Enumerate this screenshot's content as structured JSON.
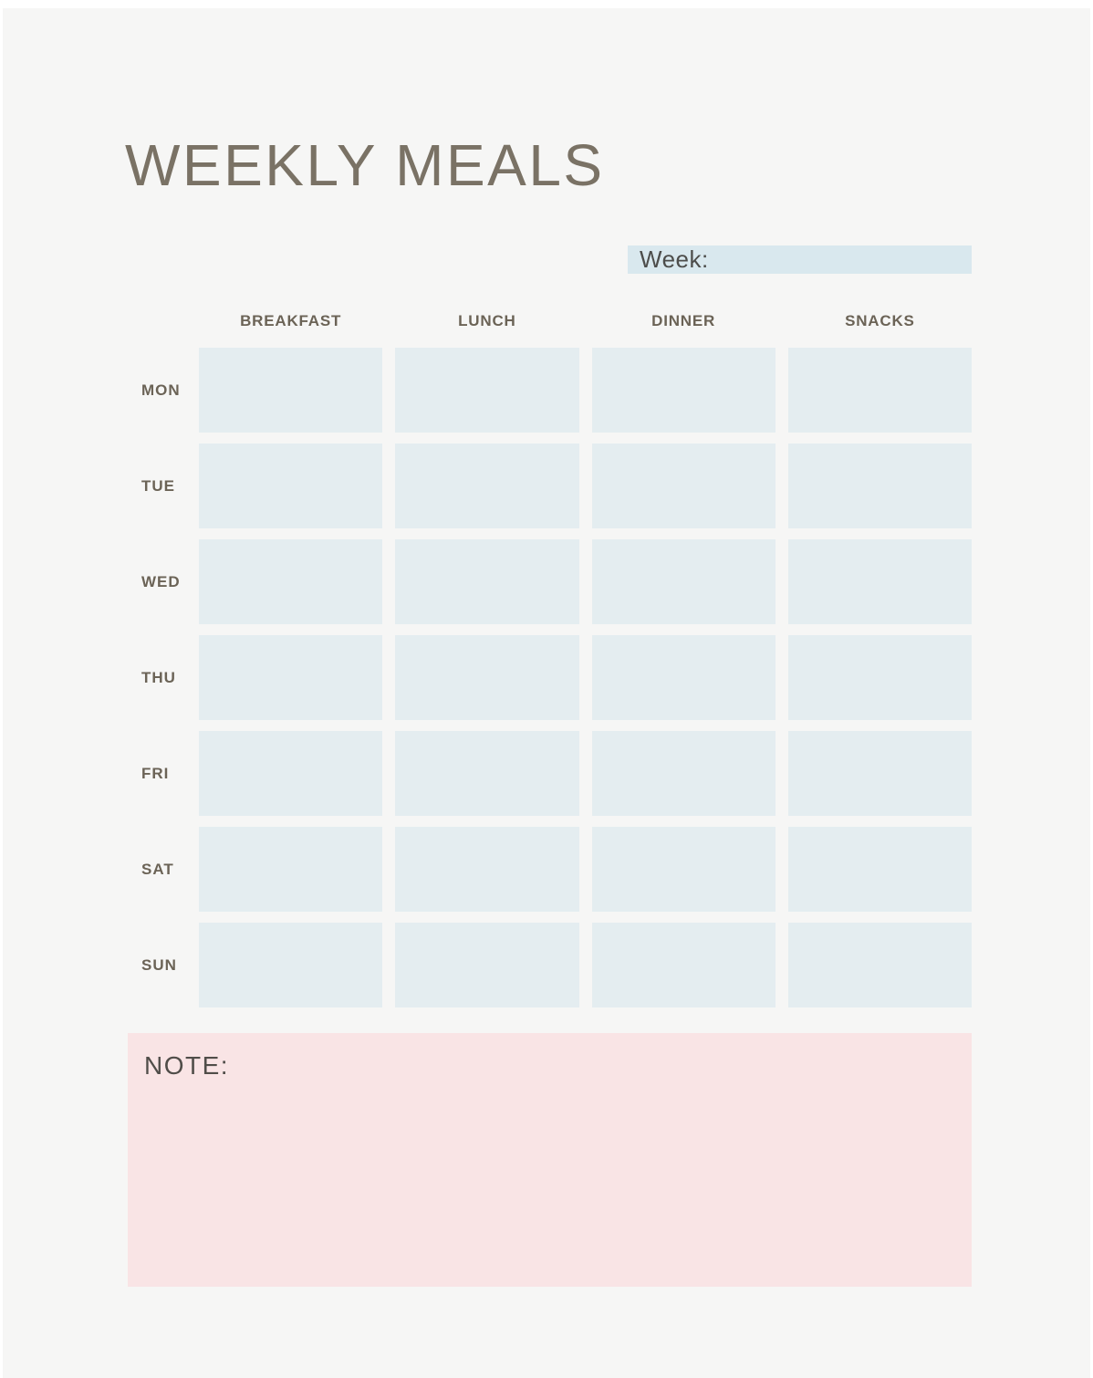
{
  "page": {
    "title": "WEEKLY MEALS"
  },
  "week_field": {
    "label": "Week:",
    "value": ""
  },
  "table": {
    "columns": [
      "BREAKFAST",
      "LUNCH",
      "DINNER",
      "SNACKS"
    ],
    "rows": [
      "MON",
      "TUE",
      "WED",
      "THU",
      "FRI",
      "SAT",
      "SUN"
    ],
    "cells": [
      [
        "",
        "",
        "",
        ""
      ],
      [
        "",
        "",
        "",
        ""
      ],
      [
        "",
        "",
        "",
        ""
      ],
      [
        "",
        "",
        "",
        ""
      ],
      [
        "",
        "",
        "",
        ""
      ],
      [
        "",
        "",
        "",
        ""
      ],
      [
        "",
        "",
        "",
        ""
      ]
    ]
  },
  "note": {
    "label": "NOTE:",
    "value": ""
  },
  "colors": {
    "background": "#f6f6f5",
    "cell_blue": "#e4edf0",
    "week_bar_blue": "#d9e8ee",
    "note_pink": "#f9e4e5",
    "title_brown": "#7a7265",
    "label_brown": "#6b6356",
    "text_dark": "#4d4d4b"
  }
}
